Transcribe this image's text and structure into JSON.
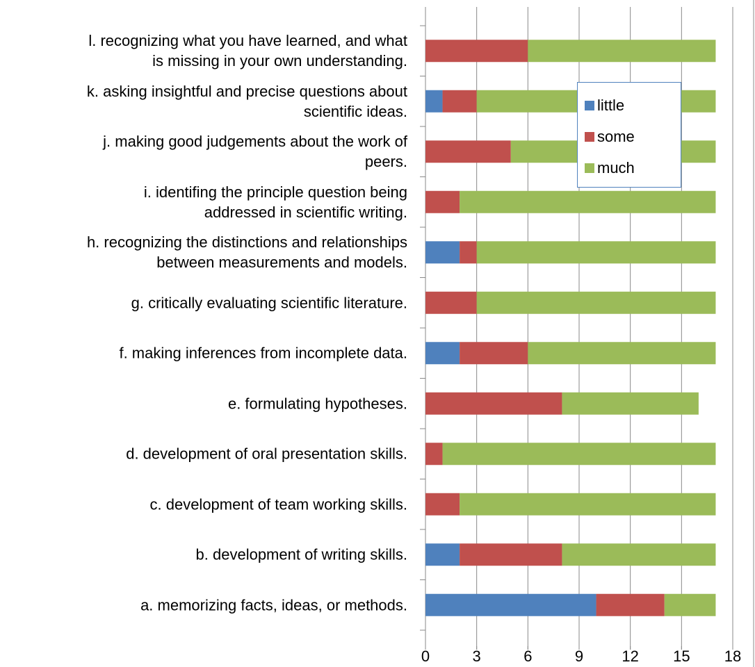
{
  "chart_data": {
    "type": "stacked_barh",
    "categories": [
      "a. memorizing facts, ideas, or methods.",
      "b. development of writing skills.",
      "c. development of team working skills.",
      "d. development of oral presentation skills.",
      "e. formulating hypotheses.",
      "f. making inferences from incomplete data.",
      "g. critically  evaluating scientific literature.",
      "h. recognizing the distinctions and relationships\nbetween measurements and models.",
      "i. identifing the principle question being\naddressed in scientific writing.",
      "j. making good judgements about the work of\npeers.",
      "k. asking insightful and precise questions about\nscientific ideas.",
      "l. recognizing what you have learned, and what\nis missing in your own understanding."
    ],
    "series": [
      {
        "name": "little",
        "color": "#4f81bd",
        "values": [
          10,
          2,
          0,
          0,
          0,
          2,
          0,
          2,
          0,
          0,
          1,
          0
        ]
      },
      {
        "name": "some",
        "color": "#c0504d",
        "values": [
          4,
          6,
          2,
          1,
          8,
          4,
          3,
          1,
          2,
          5,
          2,
          6
        ]
      },
      {
        "name": "much",
        "color": "#9bbb59",
        "values": [
          3,
          9,
          15,
          16,
          8,
          11,
          14,
          14,
          15,
          12,
          14,
          11
        ]
      }
    ],
    "xlim": [
      0,
      18
    ],
    "xticks": [
      0,
      3,
      6,
      9,
      12,
      15,
      18
    ],
    "grid": true
  }
}
